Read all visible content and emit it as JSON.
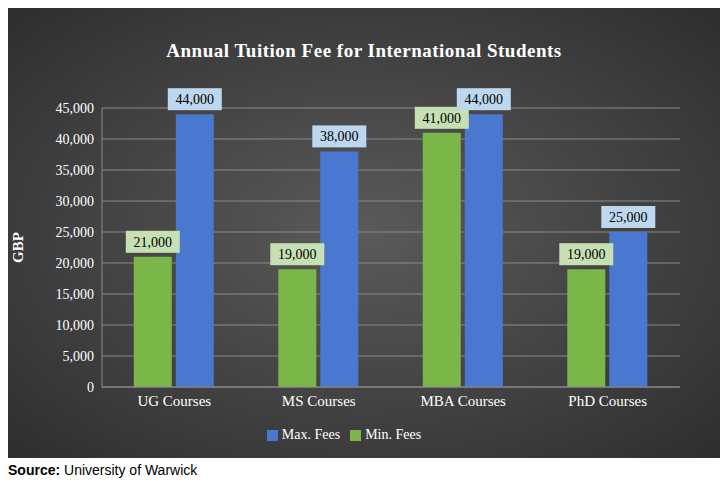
{
  "chart_data": {
    "type": "bar",
    "title": "Annual Tuition Fee for International Students",
    "y_label": "GBP",
    "categories": [
      "UG Courses",
      "MS Courses",
      "MBA Courses",
      "PhD Courses"
    ],
    "series": [
      {
        "name": "Min. Fees",
        "color": "#7ab648",
        "values": [
          21000,
          19000,
          41000,
          19000
        ],
        "value_labels": [
          "21,000",
          "19,000",
          "41,000",
          "19,000"
        ]
      },
      {
        "name": "Max. Fees",
        "color": "#4a78d0",
        "values": [
          44000,
          38000,
          44000,
          25000
        ],
        "value_labels": [
          "44,000",
          "38,000",
          "44,000",
          "25,000"
        ]
      }
    ],
    "ylim": [
      0,
      45000
    ],
    "yticks": [
      0,
      {
        "value": 5000,
        "label": "5,000"
      },
      {
        "value": 10000,
        "label": "10,000"
      },
      {
        "value": 15000,
        "label": "15,000"
      },
      {
        "value": 20000,
        "label": "20,000"
      },
      {
        "value": 25000,
        "label": "25,000"
      },
      {
        "value": 30000,
        "label": "30,000"
      },
      {
        "value": 35000,
        "label": "35,000"
      },
      {
        "value": 40000,
        "label": "40,000"
      },
      {
        "value": 45000,
        "label": "45,000"
      }
    ],
    "grid": true,
    "legend": "bottom",
    "data_labels": true,
    "source_label": "Source:",
    "source": "University of Warwick"
  }
}
